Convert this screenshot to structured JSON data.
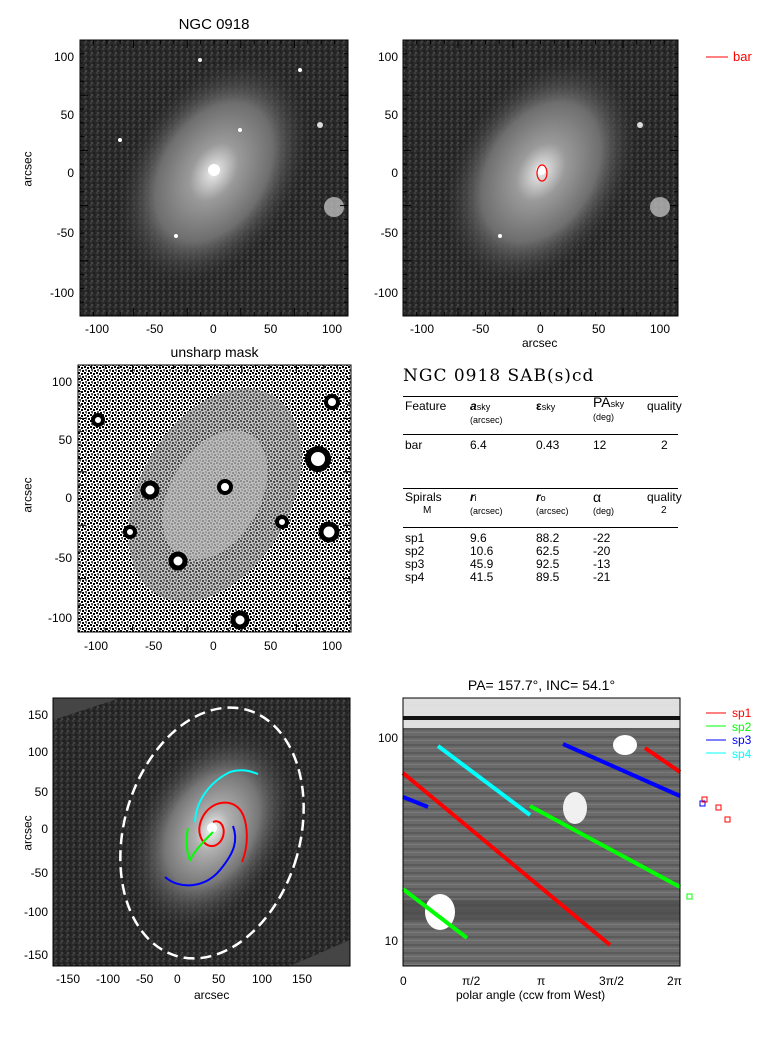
{
  "panels": {
    "p1": {
      "title": "NGC 0918",
      "ylabel": "arcsec",
      "xticks": [
        "-100",
        "-50",
        "0",
        "50",
        "100"
      ],
      "yticks": [
        "100",
        "50",
        "0",
        "-50",
        "-100"
      ]
    },
    "p2": {
      "xlabel": "arcsec",
      "xticks": [
        "-100",
        "-50",
        "0",
        "50",
        "100"
      ],
      "yticks": [
        "100",
        "50",
        "0",
        "-50",
        "-100"
      ],
      "legend": {
        "label": "bar",
        "color": "#ff0000"
      }
    },
    "p3": {
      "title": "unsharp mask",
      "ylabel": "arcsec",
      "xticks": [
        "-100",
        "-50",
        "0",
        "50",
        "100"
      ],
      "yticks": [
        "100",
        "50",
        "0",
        "-50",
        "-100"
      ]
    },
    "p5": {
      "xlabel": "arcsec",
      "ylabel": "arcsec",
      "xticks": [
        "-150",
        "-100",
        "-50",
        "0",
        "50",
        "100",
        "150"
      ],
      "yticks": [
        "150",
        "100",
        "50",
        "0",
        "-50",
        "-100",
        "-150"
      ]
    },
    "p6": {
      "title": "PA= 157.7°, INC=  54.1°",
      "xlabel": "polar angle (ccw from West)",
      "xticks": [
        "0",
        "π/2",
        "π",
        "3π/2",
        "2π"
      ],
      "yticks": [
        "100",
        "10"
      ],
      "legend": [
        {
          "label": "sp1",
          "color": "#ff0000"
        },
        {
          "label": "sp2",
          "color": "#00ff00"
        },
        {
          "label": "sp3",
          "color": "#0000ff"
        },
        {
          "label": "sp4",
          "color": "#00ffff"
        }
      ]
    }
  },
  "table": {
    "title": "NGC 0918  SAB(s)cd",
    "bar_header": {
      "feature": "Feature",
      "a": "a",
      "a_sub": "sky",
      "a_unit": "(arcsec)",
      "eps": "ε",
      "eps_sub": "sky",
      "pa": "PA",
      "pa_sub": "sky",
      "pa_unit": "(deg)",
      "quality": "quality"
    },
    "bar_row": {
      "feature": "bar",
      "a": "6.4",
      "eps": "0.43",
      "pa": "12",
      "quality": "2"
    },
    "spiral_header": {
      "spirals": "Spirals",
      "m": "M",
      "ri": "r",
      "ri_sub": "i",
      "ri_unit": "(arcsec)",
      "ro": "r",
      "ro_sub": "o",
      "ro_unit": "(arcsec)",
      "alpha": "α",
      "alpha_unit": "(deg)",
      "quality": "quality",
      "quality_val": "2"
    },
    "spirals": [
      {
        "name": "sp1",
        "ri": "9.6",
        "ro": "88.2",
        "alpha": "-22"
      },
      {
        "name": "sp2",
        "ri": "10.6",
        "ro": "62.5",
        "alpha": "-20"
      },
      {
        "name": "sp3",
        "ri": "45.9",
        "ro": "92.5",
        "alpha": "-13"
      },
      {
        "name": "sp4",
        "ri": "41.5",
        "ro": "89.5",
        "alpha": "-21"
      }
    ]
  }
}
